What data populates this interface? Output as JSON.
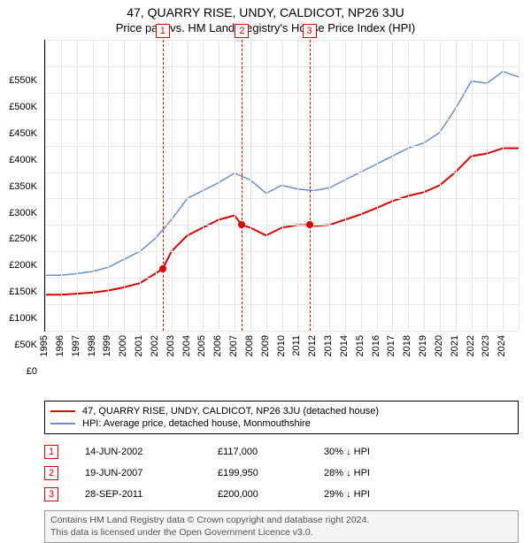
{
  "title": "47, QUARRY RISE, UNDY, CALDICOT, NP26 3JU",
  "subtitle": "Price paid vs. HM Land Registry's House Price Index (HPI)",
  "chart": {
    "type": "line",
    "background_color": "#ffffff",
    "grid_color": "#e6e6e6",
    "axis_color": "#000000",
    "x_years": [
      1995,
      1996,
      1997,
      1998,
      1999,
      2000,
      2001,
      2002,
      2003,
      2004,
      2005,
      2006,
      2007,
      2008,
      2009,
      2010,
      2011,
      2012,
      2013,
      2014,
      2015,
      2016,
      2017,
      2018,
      2019,
      2020,
      2021,
      2022,
      2023,
      2024
    ],
    "xlim": [
      1995,
      2025
    ],
    "ylim": [
      0,
      550000
    ],
    "ytick_step": 50000,
    "yticks": [
      "£0",
      "£50K",
      "£100K",
      "£150K",
      "£200K",
      "£250K",
      "£300K",
      "£350K",
      "£400K",
      "£450K",
      "£500K",
      "£550K"
    ],
    "series": [
      {
        "name": "price-paid",
        "label": "47, QUARRY RISE, UNDY, CALDICOT, NP26 3JU (detached house)",
        "color": "#dc0000",
        "line_width": 2,
        "points": [
          [
            1995,
            68000
          ],
          [
            1996,
            68000
          ],
          [
            1997,
            70000
          ],
          [
            1998,
            72000
          ],
          [
            1999,
            76000
          ],
          [
            2000,
            82000
          ],
          [
            2001,
            90000
          ],
          [
            2002.45,
            117000
          ],
          [
            2003,
            150000
          ],
          [
            2004,
            180000
          ],
          [
            2005,
            195000
          ],
          [
            2006,
            210000
          ],
          [
            2007,
            218000
          ],
          [
            2007.47,
            199950
          ],
          [
            2008,
            195000
          ],
          [
            2009,
            180000
          ],
          [
            2010,
            195000
          ],
          [
            2011,
            200000
          ],
          [
            2011.74,
            200000
          ],
          [
            2012,
            198000
          ],
          [
            2013,
            200000
          ],
          [
            2014,
            210000
          ],
          [
            2015,
            220000
          ],
          [
            2016,
            232000
          ],
          [
            2017,
            245000
          ],
          [
            2018,
            255000
          ],
          [
            2019,
            262000
          ],
          [
            2020,
            275000
          ],
          [
            2021,
            300000
          ],
          [
            2022,
            330000
          ],
          [
            2023,
            335000
          ],
          [
            2024,
            345000
          ],
          [
            2025,
            345000
          ]
        ]
      },
      {
        "name": "hpi",
        "label": "HPI: Average price, detached house, Monmouthshire",
        "color": "#6b8fc9",
        "line_width": 1.5,
        "points": [
          [
            1995,
            105000
          ],
          [
            1996,
            105000
          ],
          [
            1997,
            108000
          ],
          [
            1998,
            112000
          ],
          [
            1999,
            120000
          ],
          [
            2000,
            135000
          ],
          [
            2001,
            150000
          ],
          [
            2002,
            175000
          ],
          [
            2003,
            210000
          ],
          [
            2004,
            250000
          ],
          [
            2005,
            265000
          ],
          [
            2006,
            280000
          ],
          [
            2007,
            298000
          ],
          [
            2008,
            285000
          ],
          [
            2009,
            260000
          ],
          [
            2010,
            275000
          ],
          [
            2011,
            268000
          ],
          [
            2012,
            265000
          ],
          [
            2013,
            270000
          ],
          [
            2014,
            285000
          ],
          [
            2015,
            300000
          ],
          [
            2016,
            315000
          ],
          [
            2017,
            330000
          ],
          [
            2018,
            345000
          ],
          [
            2019,
            355000
          ],
          [
            2020,
            375000
          ],
          [
            2021,
            420000
          ],
          [
            2022,
            472000
          ],
          [
            2023,
            468000
          ],
          [
            2024,
            490000
          ],
          [
            2025,
            480000
          ]
        ]
      }
    ],
    "markers": [
      {
        "n": "1",
        "year": 2002.45,
        "box_top_offset": -18,
        "point_y": 117000
      },
      {
        "n": "2",
        "year": 2007.47,
        "box_top_offset": -18,
        "point_y": 199950
      },
      {
        "n": "3",
        "year": 2011.74,
        "box_top_offset": -18,
        "point_y": 200000
      }
    ]
  },
  "legend": {
    "items": [
      {
        "color": "#dc0000",
        "label": "47, QUARRY RISE, UNDY, CALDICOT, NP26 3JU (detached house)"
      },
      {
        "color": "#6b8fc9",
        "label": "HPI: Average price, detached house, Monmouthshire"
      }
    ]
  },
  "sales": [
    {
      "n": "1",
      "date": "14-JUN-2002",
      "price": "£117,000",
      "delta": "30% ↓ HPI"
    },
    {
      "n": "2",
      "date": "19-JUN-2007",
      "price": "£199,950",
      "delta": "28% ↓ HPI"
    },
    {
      "n": "3",
      "date": "28-SEP-2011",
      "price": "£200,000",
      "delta": "29% ↓ HPI"
    }
  ],
  "footer": {
    "line1": "Contains HM Land Registry data © Crown copyright and database right 2024.",
    "line2": "This data is licensed under the Open Government Licence v3.0."
  }
}
